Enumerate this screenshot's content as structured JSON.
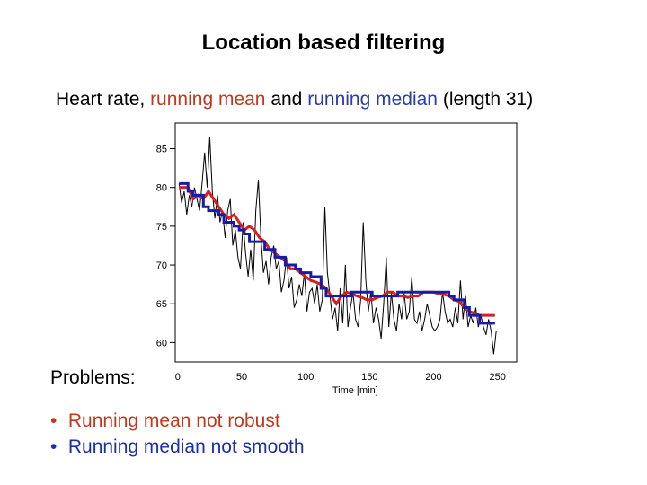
{
  "title": "Location based filtering",
  "subtitle": {
    "part1": "Heart rate",
    "sep": ",",
    "part2": "running mean",
    "part3": "and",
    "part4": "running median",
    "part5": "(length 31)"
  },
  "problems_label": "Problems:",
  "bullets": [
    {
      "text": "Running mean not robust",
      "color": "#c0391b"
    },
    {
      "text": "Running median not smooth",
      "color": "#1c2fa8"
    }
  ],
  "colors": {
    "raw": "#000000",
    "mean": "#d42020",
    "median": "#1a1aa8",
    "accent_text_red": "#c0391b",
    "accent_text_blue": "#2b3da8"
  },
  "chart_data": {
    "type": "line",
    "xlabel": "Time [min]",
    "ylabel": "",
    "xlim": [
      -2,
      265
    ],
    "ylim": [
      57.5,
      88.3
    ],
    "x_ticks": [
      0,
      50,
      100,
      150,
      200,
      250
    ],
    "x_tick_labels": [
      "0",
      "50",
      "100",
      "150",
      "200",
      "250"
    ],
    "y_ticks": [
      60,
      65,
      70,
      75,
      80,
      85
    ],
    "y_tick_labels": [
      "60",
      "65",
      "70",
      "75",
      "80",
      "85"
    ],
    "series": [
      {
        "name": "Heart rate",
        "x": [
          1,
          3,
          5,
          7,
          9,
          11,
          13,
          15,
          17,
          19,
          21,
          23,
          25,
          27,
          29,
          31,
          33,
          35,
          37,
          39,
          41,
          43,
          45,
          47,
          49,
          51,
          53,
          55,
          57,
          59,
          61,
          63,
          65,
          67,
          69,
          71,
          73,
          75,
          77,
          79,
          81,
          83,
          85,
          87,
          89,
          91,
          93,
          95,
          97,
          99,
          101,
          103,
          105,
          107,
          109,
          111,
          113,
          115,
          117,
          119,
          121,
          123,
          125,
          127,
          129,
          131,
          133,
          135,
          137,
          139,
          141,
          143,
          145,
          147,
          149,
          151,
          153,
          155,
          157,
          159,
          161,
          163,
          165,
          167,
          169,
          171,
          173,
          175,
          177,
          179,
          181,
          183,
          185,
          187,
          189,
          191,
          193,
          195,
          197,
          199,
          201,
          203,
          205,
          207,
          209,
          211,
          213,
          215,
          217,
          219,
          221,
          223,
          225,
          227,
          229,
          231,
          233,
          235,
          237,
          239,
          241,
          243,
          245,
          247,
          249
        ],
        "values": [
          80.5,
          78.0,
          79.5,
          76.5,
          79.0,
          77.5,
          80.0,
          78.5,
          77.0,
          80.5,
          84.5,
          80.0,
          86.5,
          79.5,
          76.0,
          79.0,
          75.5,
          77.0,
          73.5,
          77.0,
          78.5,
          72.5,
          74.5,
          71.0,
          69.5,
          75.5,
          71.5,
          68.5,
          72.0,
          68.0,
          77.0,
          81.0,
          73.5,
          69.0,
          70.5,
          67.5,
          71.0,
          72.5,
          69.5,
          70.5,
          66.5,
          68.0,
          71.0,
          67.0,
          68.5,
          64.5,
          65.5,
          67.5,
          66.0,
          69.0,
          64.0,
          66.5,
          67.0,
          65.0,
          67.5,
          64.0,
          65.5,
          77.5,
          69.0,
          66.0,
          63.0,
          64.5,
          61.5,
          67.0,
          62.5,
          70.0,
          62.0,
          64.5,
          66.5,
          63.0,
          62.0,
          65.5,
          75.5,
          68.0,
          64.0,
          66.5,
          62.5,
          64.5,
          63.0,
          60.5,
          65.0,
          71.0,
          62.0,
          66.5,
          63.0,
          61.5,
          65.0,
          63.0,
          66.5,
          63.0,
          64.0,
          68.5,
          63.0,
          62.5,
          64.0,
          61.5,
          63.0,
          65.0,
          63.5,
          62.0,
          61.5,
          62.0,
          63.0,
          66.5,
          64.0,
          62.5,
          63.0,
          62.0,
          64.5,
          62.5,
          68.0,
          63.0,
          66.0,
          62.0,
          63.5,
          62.5,
          64.5,
          62.0,
          63.5,
          62.0,
          61.0,
          63.0,
          61.5,
          58.5,
          61.5
        ]
      },
      {
        "name": "Running mean",
        "x": [
          1,
          8,
          12,
          16,
          20,
          24,
          28,
          32,
          36,
          40,
          44,
          48,
          52,
          56,
          60,
          64,
          68,
          72,
          76,
          80,
          84,
          88,
          92,
          96,
          100,
          104,
          108,
          112,
          116,
          120,
          124,
          128,
          132,
          136,
          140,
          144,
          148,
          152,
          156,
          160,
          164,
          168,
          172,
          176,
          180,
          184,
          188,
          192,
          196,
          200,
          204,
          208,
          212,
          216,
          220,
          224,
          228,
          232,
          236,
          240,
          244,
          248
        ],
        "values": [
          80.0,
          80.0,
          78.5,
          79.0,
          78.5,
          79.5,
          78.5,
          77.5,
          76.5,
          76.0,
          76.5,
          75.5,
          74.5,
          75.0,
          74.5,
          73.5,
          73.0,
          72.0,
          71.5,
          71.0,
          70.5,
          69.5,
          69.5,
          69.0,
          68.5,
          68.0,
          67.8,
          67.5,
          67.0,
          66.0,
          65.0,
          66.0,
          66.5,
          66.3,
          66.0,
          65.8,
          65.5,
          65.5,
          65.8,
          66.0,
          66.5,
          66.5,
          66.0,
          66.0,
          65.8,
          66.0,
          66.0,
          66.5,
          66.5,
          66.5,
          66.3,
          66.2,
          66.0,
          65.5,
          65.3,
          64.5,
          64.0,
          63.8,
          63.5,
          63.5,
          63.5,
          63.5
        ]
      },
      {
        "name": "Running median",
        "x": [
          1,
          8,
          12,
          16,
          20,
          24,
          28,
          32,
          36,
          40,
          44,
          48,
          52,
          56,
          60,
          64,
          68,
          72,
          76,
          80,
          84,
          88,
          92,
          96,
          100,
          104,
          108,
          112,
          116,
          120,
          124,
          128,
          132,
          136,
          140,
          144,
          148,
          152,
          156,
          160,
          164,
          168,
          172,
          176,
          180,
          184,
          188,
          192,
          196,
          200,
          204,
          208,
          212,
          216,
          220,
          224,
          228,
          232,
          236,
          240,
          244,
          248
        ],
        "values": [
          80.5,
          79.5,
          79.0,
          79.0,
          77.5,
          77.0,
          77.0,
          76.5,
          75.5,
          75.5,
          75.0,
          74.5,
          74.0,
          73.0,
          73.0,
          73.0,
          72.0,
          72.0,
          71.0,
          71.0,
          70.0,
          70.0,
          69.5,
          69.0,
          69.0,
          68.5,
          68.5,
          67.0,
          66.0,
          66.0,
          66.0,
          66.0,
          66.0,
          66.5,
          66.5,
          66.5,
          66.5,
          66.0,
          66.0,
          66.0,
          66.0,
          66.0,
          66.5,
          66.5,
          66.5,
          66.5,
          66.5,
          66.5,
          66.5,
          66.5,
          66.5,
          66.5,
          66.0,
          65.5,
          65.5,
          64.5,
          63.5,
          63.5,
          62.5,
          62.5,
          62.5,
          62.5
        ]
      }
    ]
  }
}
